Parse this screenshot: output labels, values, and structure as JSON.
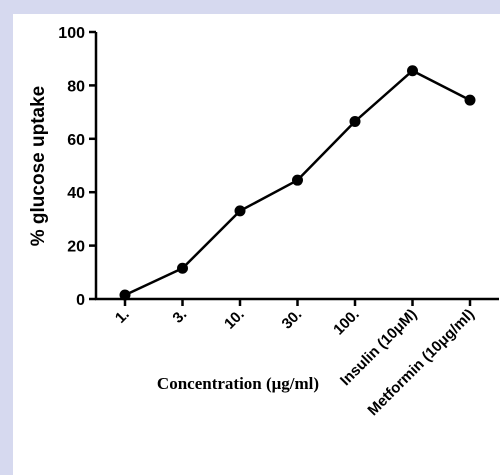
{
  "chart_data": {
    "type": "line",
    "title": "",
    "xlabel": "Concentration (μg/ml)",
    "ylabel": "% glucose uptake",
    "ylim": [
      0,
      100
    ],
    "yticks": [
      "0",
      "20",
      "40",
      "60",
      "80",
      "100"
    ],
    "categories": [
      "1.",
      "3.",
      "10.",
      "30.",
      "100.",
      "Insulin (10μM)",
      "Metformin (10μg/ml)"
    ],
    "values": [
      1.5,
      11.5,
      33,
      44.5,
      66.5,
      85.5,
      74.5
    ],
    "grid": false,
    "legend": "none",
    "colors": {
      "line": "#000000",
      "marker": "#000000",
      "frame": "#d6d9ef",
      "background": "#ffffff"
    }
  }
}
